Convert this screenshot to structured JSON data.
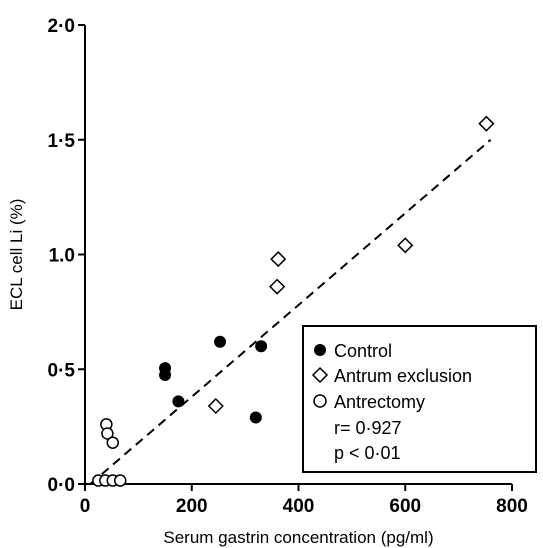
{
  "chart_data": {
    "type": "scatter",
    "xlabel": "Serum gastrin concentration (pg/ml)",
    "ylabel": "ECL cell Li (%)",
    "xlim": [
      0,
      800
    ],
    "ylim": [
      0,
      2.0
    ],
    "x_ticks": [
      0,
      200,
      400,
      600,
      800
    ],
    "x_tick_labels": [
      "0",
      "200",
      "400",
      "600",
      "800"
    ],
    "y_ticks": [
      0,
      0.5,
      1.0,
      1.5,
      2.0
    ],
    "y_tick_labels": [
      "0·0",
      "0·5",
      "1.0",
      "1·5",
      "2·0"
    ],
    "grid": false,
    "legend_position": "bottom-right",
    "series": [
      {
        "name": "Control",
        "marker": "filled-circle",
        "points": [
          {
            "x": 150,
            "y": 0.505
          },
          {
            "x": 150,
            "y": 0.475
          },
          {
            "x": 175,
            "y": 0.36
          },
          {
            "x": 253,
            "y": 0.62
          },
          {
            "x": 320,
            "y": 0.29
          },
          {
            "x": 330,
            "y": 0.6
          }
        ]
      },
      {
        "name": "Antrum exclusion",
        "marker": "open-diamond",
        "points": [
          {
            "x": 245,
            "y": 0.34
          },
          {
            "x": 360,
            "y": 0.86
          },
          {
            "x": 362,
            "y": 0.98
          },
          {
            "x": 600,
            "y": 1.04
          },
          {
            "x": 752,
            "y": 1.57
          }
        ]
      },
      {
        "name": "Antrectomy",
        "marker": "open-circle",
        "points": [
          {
            "x": 40,
            "y": 0.26
          },
          {
            "x": 42,
            "y": 0.22
          },
          {
            "x": 52,
            "y": 0.18
          },
          {
            "x": 25,
            "y": 0.015
          },
          {
            "x": 38,
            "y": 0.015
          },
          {
            "x": 52,
            "y": 0.015
          },
          {
            "x": 66,
            "y": 0.015
          }
        ]
      }
    ],
    "regression_line": {
      "x": [
        10,
        760
      ],
      "y": [
        0.0,
        1.5
      ],
      "style": "dashed"
    },
    "annotations": [
      "r= 0·927",
      "p < 0·01"
    ]
  }
}
